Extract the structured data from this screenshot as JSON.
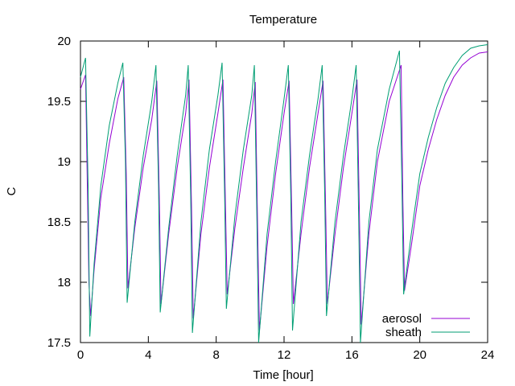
{
  "chart_data": {
    "type": "line",
    "title": "Temperature",
    "xlabel": "Time [hour]",
    "ylabel": "C",
    "xlim": [
      0,
      24
    ],
    "ylim": [
      17.5,
      20
    ],
    "xticks": [
      0,
      4,
      8,
      12,
      16,
      20,
      24
    ],
    "yticks": [
      17.5,
      18,
      18.5,
      19,
      19.5,
      20
    ],
    "grid": false,
    "legend_position": "bottom-right",
    "series": [
      {
        "name": "aerosol",
        "color": "#9400d3",
        "points": [
          [
            0.0,
            19.6
          ],
          [
            0.3,
            19.72
          ],
          [
            0.5,
            18.0
          ],
          [
            0.6,
            17.72
          ],
          [
            0.8,
            18.1
          ],
          [
            1.2,
            18.7
          ],
          [
            1.7,
            19.15
          ],
          [
            2.2,
            19.52
          ],
          [
            2.55,
            19.7
          ],
          [
            2.7,
            18.9
          ],
          [
            2.8,
            17.95
          ],
          [
            3.2,
            18.45
          ],
          [
            3.7,
            18.95
          ],
          [
            4.2,
            19.35
          ],
          [
            4.5,
            19.67
          ],
          [
            4.65,
            18.7
          ],
          [
            4.75,
            17.82
          ],
          [
            5.2,
            18.4
          ],
          [
            5.7,
            18.95
          ],
          [
            6.2,
            19.4
          ],
          [
            6.4,
            19.68
          ],
          [
            6.55,
            18.6
          ],
          [
            6.65,
            17.7
          ],
          [
            7.1,
            18.4
          ],
          [
            7.6,
            18.95
          ],
          [
            8.1,
            19.4
          ],
          [
            8.4,
            19.68
          ],
          [
            8.55,
            18.6
          ],
          [
            8.65,
            17.9
          ],
          [
            9.1,
            18.45
          ],
          [
            9.6,
            18.95
          ],
          [
            10.1,
            19.4
          ],
          [
            10.3,
            19.66
          ],
          [
            10.45,
            18.4
          ],
          [
            10.55,
            17.6
          ],
          [
            11.0,
            18.3
          ],
          [
            11.5,
            18.9
          ],
          [
            12.0,
            19.4
          ],
          [
            12.3,
            19.67
          ],
          [
            12.45,
            18.6
          ],
          [
            12.55,
            17.82
          ],
          [
            13.0,
            18.4
          ],
          [
            13.5,
            18.95
          ],
          [
            14.0,
            19.4
          ],
          [
            14.3,
            19.67
          ],
          [
            14.45,
            18.6
          ],
          [
            14.55,
            17.82
          ],
          [
            15.0,
            18.4
          ],
          [
            15.5,
            18.95
          ],
          [
            16.0,
            19.4
          ],
          [
            16.3,
            19.68
          ],
          [
            16.45,
            18.5
          ],
          [
            16.55,
            17.65
          ],
          [
            17.0,
            18.4
          ],
          [
            17.5,
            19.0
          ],
          [
            18.2,
            19.5
          ],
          [
            18.9,
            19.8
          ],
          [
            19.0,
            18.7
          ],
          [
            19.1,
            17.93
          ],
          [
            19.5,
            18.3
          ],
          [
            20.0,
            18.8
          ],
          [
            20.5,
            19.1
          ],
          [
            21.0,
            19.35
          ],
          [
            21.5,
            19.55
          ],
          [
            22.0,
            19.7
          ],
          [
            22.5,
            19.8
          ],
          [
            23.0,
            19.86
          ],
          [
            23.5,
            19.9
          ],
          [
            24.0,
            19.91
          ]
        ]
      },
      {
        "name": "sheath",
        "color": "#009e73",
        "points": [
          [
            0.0,
            19.7
          ],
          [
            0.3,
            19.86
          ],
          [
            0.45,
            18.8
          ],
          [
            0.55,
            17.55
          ],
          [
            0.8,
            18.15
          ],
          [
            1.2,
            18.8
          ],
          [
            1.7,
            19.3
          ],
          [
            2.2,
            19.65
          ],
          [
            2.5,
            19.82
          ],
          [
            2.65,
            19.0
          ],
          [
            2.75,
            17.83
          ],
          [
            3.2,
            18.5
          ],
          [
            3.7,
            19.05
          ],
          [
            4.2,
            19.5
          ],
          [
            4.45,
            19.8
          ],
          [
            4.6,
            18.8
          ],
          [
            4.7,
            17.75
          ],
          [
            5.2,
            18.45
          ],
          [
            5.7,
            19.05
          ],
          [
            6.2,
            19.55
          ],
          [
            6.35,
            19.8
          ],
          [
            6.5,
            18.7
          ],
          [
            6.6,
            17.58
          ],
          [
            7.1,
            18.5
          ],
          [
            7.6,
            19.1
          ],
          [
            8.1,
            19.55
          ],
          [
            8.35,
            19.82
          ],
          [
            8.5,
            18.7
          ],
          [
            8.6,
            17.78
          ],
          [
            9.1,
            18.55
          ],
          [
            9.6,
            19.1
          ],
          [
            10.1,
            19.55
          ],
          [
            10.25,
            19.8
          ],
          [
            10.4,
            18.5
          ],
          [
            10.5,
            17.5
          ],
          [
            11.0,
            18.4
          ],
          [
            11.5,
            19.0
          ],
          [
            12.0,
            19.52
          ],
          [
            12.25,
            19.8
          ],
          [
            12.4,
            18.7
          ],
          [
            12.5,
            17.6
          ],
          [
            13.0,
            18.5
          ],
          [
            13.5,
            19.05
          ],
          [
            14.0,
            19.52
          ],
          [
            14.25,
            19.8
          ],
          [
            14.4,
            18.7
          ],
          [
            14.5,
            17.72
          ],
          [
            15.0,
            18.5
          ],
          [
            15.5,
            19.05
          ],
          [
            16.0,
            19.52
          ],
          [
            16.25,
            19.8
          ],
          [
            16.4,
            18.5
          ],
          [
            16.5,
            17.5
          ],
          [
            17.0,
            18.5
          ],
          [
            17.5,
            19.1
          ],
          [
            18.2,
            19.6
          ],
          [
            18.8,
            19.92
          ],
          [
            18.95,
            18.8
          ],
          [
            19.05,
            17.9
          ],
          [
            19.5,
            18.4
          ],
          [
            20.0,
            18.9
          ],
          [
            20.5,
            19.2
          ],
          [
            21.0,
            19.45
          ],
          [
            21.5,
            19.65
          ],
          [
            22.0,
            19.78
          ],
          [
            22.5,
            19.88
          ],
          [
            23.0,
            19.94
          ],
          [
            23.5,
            19.96
          ],
          [
            24.0,
            19.97
          ]
        ]
      }
    ]
  }
}
